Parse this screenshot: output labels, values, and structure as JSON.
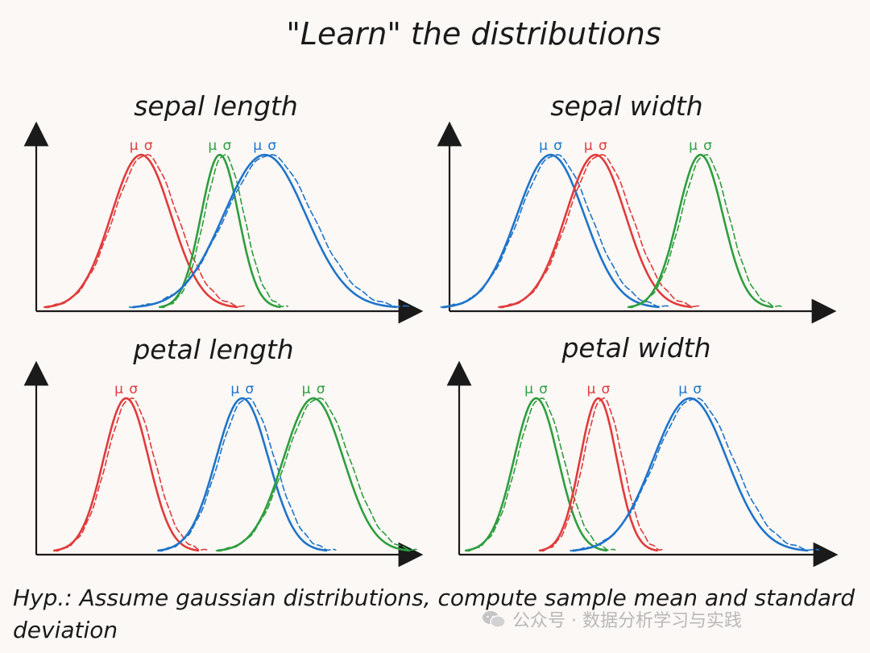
{
  "title": "\"Learn\" the distributions",
  "footnote": "Hyp.: Assume gaussian distributions, compute sample mean and standard deviation",
  "watermark": "公众号 · 数据分析学习与实践",
  "colors": {
    "red": "#e03b3b",
    "green": "#2e9e3e",
    "blue": "#1f74c9",
    "ink": "#1a1a1a"
  },
  "symbols": {
    "mu": "μ",
    "sigma": "σ"
  },
  "panels": [
    {
      "id": "sepal-length",
      "label": "sepal length",
      "curves": [
        {
          "color": "red",
          "peak": 0.28,
          "sigma": 0.08
        },
        {
          "color": "green",
          "peak": 0.49,
          "sigma": 0.05
        },
        {
          "color": "blue",
          "peak": 0.61,
          "sigma": 0.11
        }
      ]
    },
    {
      "id": "sepal-width",
      "label": "sepal width",
      "curves": [
        {
          "color": "blue",
          "peak": 0.27,
          "sigma": 0.09
        },
        {
          "color": "red",
          "peak": 0.39,
          "sigma": 0.08
        },
        {
          "color": "green",
          "peak": 0.67,
          "sigma": 0.06
        }
      ]
    },
    {
      "id": "petal-length",
      "label": "petal length",
      "curves": [
        {
          "color": "red",
          "peak": 0.24,
          "sigma": 0.06
        },
        {
          "color": "blue",
          "peak": 0.55,
          "sigma": 0.07
        },
        {
          "color": "green",
          "peak": 0.74,
          "sigma": 0.08
        }
      ]
    },
    {
      "id": "petal-width",
      "label": "petal width",
      "curves": [
        {
          "color": "green",
          "peak": 0.21,
          "sigma": 0.06
        },
        {
          "color": "red",
          "peak": 0.38,
          "sigma": 0.05
        },
        {
          "color": "blue",
          "peak": 0.63,
          "sigma": 0.1
        }
      ]
    }
  ]
}
